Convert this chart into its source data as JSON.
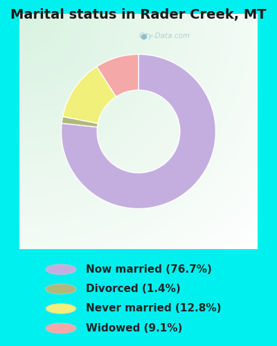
{
  "title": "Marital status in Rader Creek, MT",
  "slices": [
    76.7,
    1.4,
    12.8,
    9.1
  ],
  "labels": [
    "Now married (76.7%)",
    "Divorced (1.4%)",
    "Never married (12.8%)",
    "Widowed (9.1%)"
  ],
  "colors": [
    "#c4aee0",
    "#b0b87a",
    "#f0f07a",
    "#f5a8a8"
  ],
  "legend_colors": [
    "#c4aee0",
    "#b0b87a",
    "#f0f07a",
    "#f5a8a8"
  ],
  "bg_cyan": "#00f0f0",
  "bg_chart_outer": "#c8edd8",
  "bg_chart_inner": "#e8f5ec",
  "donut_width": 0.38,
  "startangle": 90,
  "watermark": "City-Data.com",
  "title_fontsize": 14,
  "legend_fontsize": 11
}
